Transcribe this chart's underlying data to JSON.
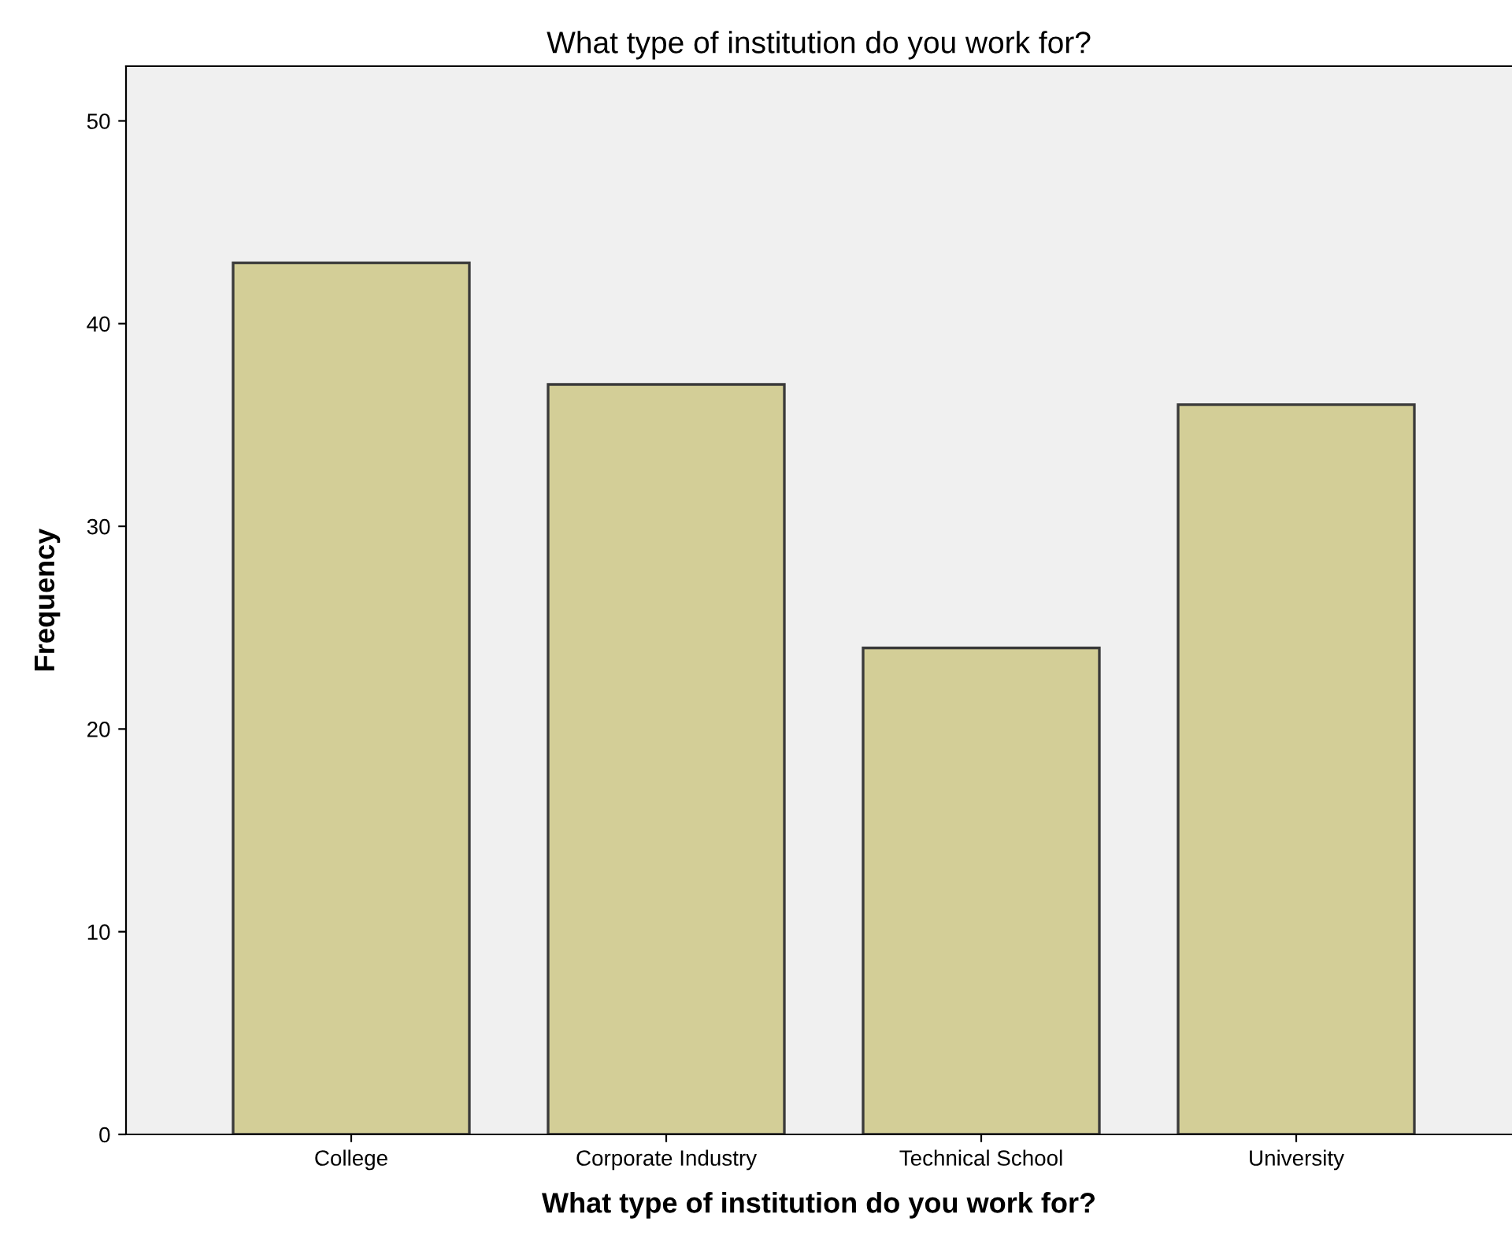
{
  "chart_data": {
    "type": "bar",
    "title": "What type of institution do you work for?",
    "xlabel": "What type of institution do you work for?",
    "ylabel": "Frequency",
    "categories": [
      "College",
      "Corporate Industry",
      "Technical School",
      "University"
    ],
    "values": [
      43,
      37,
      24,
      36
    ],
    "color": "#d3ce97",
    "ylim": [
      0,
      52.7
    ],
    "yticks": [
      0,
      10,
      20,
      30,
      40,
      50
    ],
    "grid": false,
    "legend": false
  }
}
